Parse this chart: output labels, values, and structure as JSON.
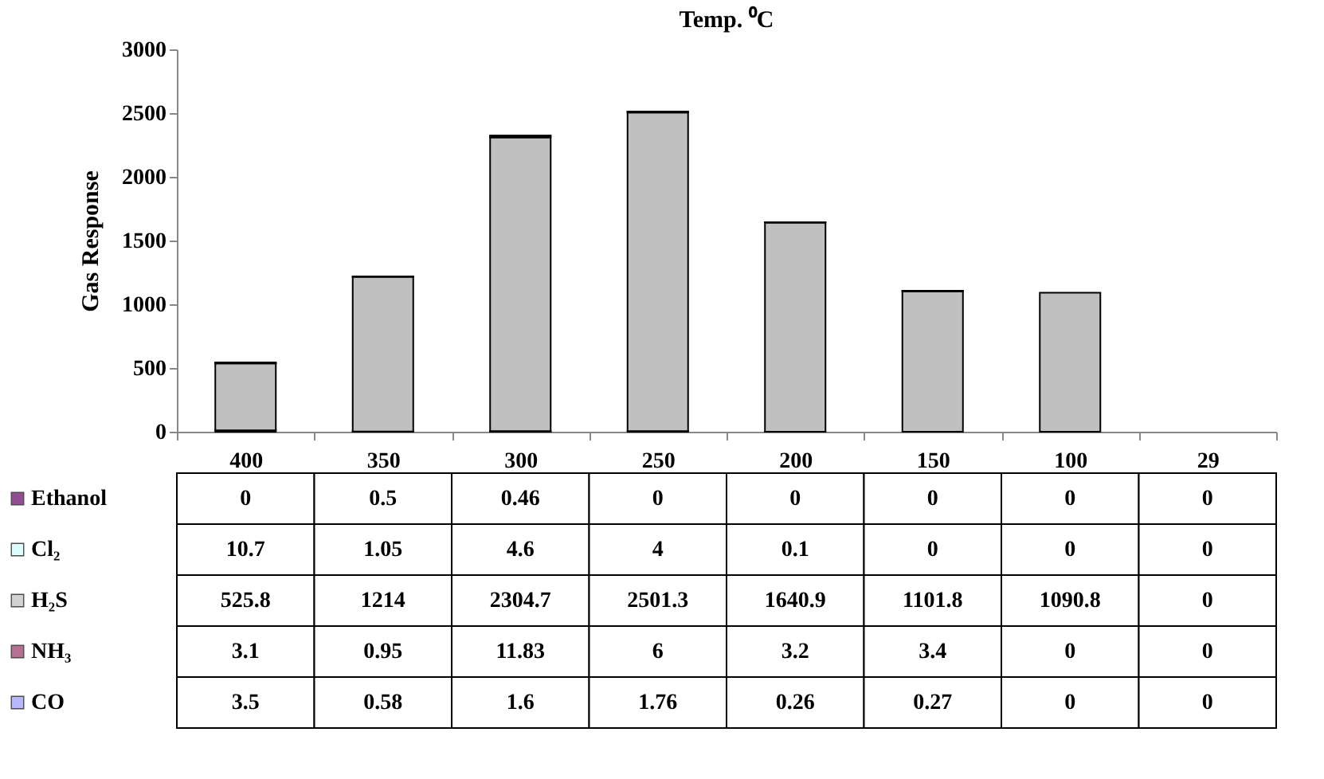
{
  "chart_data": {
    "type": "bar",
    "stacked": true,
    "title": "Temp. ⁰C",
    "ylabel": "Gas Response",
    "categories": [
      "400",
      "350",
      "300",
      "250",
      "200",
      "150",
      "100",
      "29"
    ],
    "ylim": [
      0,
      3000
    ],
    "yticks": [
      0,
      500,
      1000,
      1500,
      2000,
      2500,
      3000
    ],
    "grid": false,
    "legend": "bottom left",
    "data_labels": true,
    "series": [
      {
        "name": "Ethanol",
        "color": "#660066",
        "values": [
          0,
          0.5,
          0.46,
          0,
          0,
          0,
          0,
          0
        ]
      },
      {
        "name": "Cl₂",
        "color": "#ccffff",
        "values": [
          10.7,
          1.05,
          4.6,
          4,
          0.1,
          0,
          0,
          0
        ]
      },
      {
        "name": "H₂S",
        "color": "#c0c0c0",
        "values": [
          525.8,
          1214,
          2304.7,
          2501.3,
          1640.9,
          1101.8,
          1090.8,
          0
        ]
      },
      {
        "name": "NH₃",
        "color": "#993366",
        "values": [
          3.1,
          0.95,
          11.83,
          6,
          3.2,
          3.4,
          0,
          0
        ]
      },
      {
        "name": "CO",
        "color": "#9999ff",
        "values": [
          3.5,
          0.58,
          1.6,
          1.76,
          0.26,
          0.27,
          0,
          0
        ]
      }
    ]
  }
}
